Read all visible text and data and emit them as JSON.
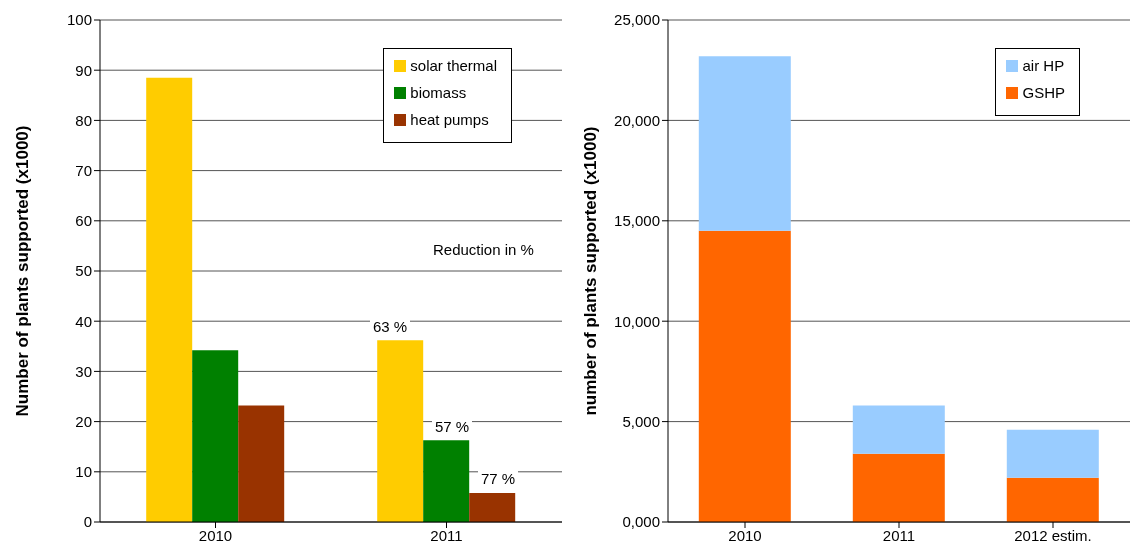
{
  "chart_data": [
    {
      "type": "bar",
      "ylabel": "Number of plants supported (x1000)",
      "categories": [
        "2010",
        "2011"
      ],
      "series": [
        {
          "name": "solar thermal",
          "color": "#ffcc00",
          "values": [
            88.5,
            36.2
          ]
        },
        {
          "name": "biomass",
          "color": "#008000",
          "values": [
            34.2,
            16.3
          ]
        },
        {
          "name": "heat pumps",
          "color": "#993300",
          "values": [
            23.2,
            5.8
          ]
        }
      ],
      "ylim": [
        0,
        100
      ],
      "yticks": [
        0,
        10,
        20,
        30,
        40,
        50,
        60,
        70,
        80,
        90,
        100
      ],
      "grid": "y",
      "legend": "top right",
      "annotations": [
        "Reduction in %",
        "63 %",
        "57 %",
        "77 %"
      ]
    },
    {
      "type": "bar",
      "ylabel": "number of plants supported (x1000)",
      "categories": [
        "2010",
        "2011",
        "2012 estim."
      ],
      "stacked": true,
      "series": [
        {
          "name": "GSHP",
          "color": "#ff6600",
          "values": [
            14500,
            3400,
            2200
          ]
        },
        {
          "name": "air HP",
          "color": "#99ccff",
          "values": [
            8700,
            2400,
            2400
          ]
        }
      ],
      "ylim": [
        0,
        25000
      ],
      "yticks": [
        {
          "value": 0,
          "label": "0,000"
        },
        {
          "value": 5000,
          "label": "5,000"
        },
        {
          "value": 10000,
          "label": "10,000"
        },
        {
          "value": 15000,
          "label": "15,000"
        },
        {
          "value": 20000,
          "label": "20,000"
        },
        {
          "value": 25000,
          "label": "25,000"
        }
      ],
      "grid": "y",
      "legend": "top right"
    }
  ]
}
